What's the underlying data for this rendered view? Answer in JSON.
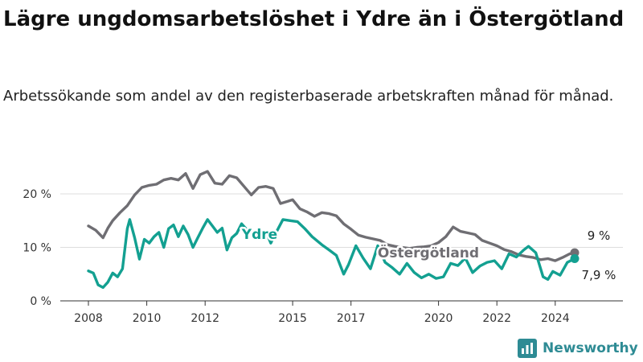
{
  "title": "Lägre ungdomsarbetslöshet i Ydre än i Östergötland",
  "subtitle": "Arbetssökande som andel av den registerbaserade arbetskraften månad för månad.",
  "brand": {
    "name": "Newsworthy"
  },
  "colors": {
    "ostergotland": "#6f6e73",
    "ydre": "#13a091",
    "grid": "#dddddd",
    "brand": "#2e8b94"
  },
  "chart_data": {
    "type": "line",
    "title": "Lägre ungdomsarbetslöshet i Ydre än i Östergötland",
    "subtitle": "Arbetssökande som andel av den registerbaserade arbetskraften månad för månad.",
    "x_range": [
      "2008-01",
      "2024-09"
    ],
    "ylim": [
      0,
      25
    ],
    "y_ticks": [
      {
        "value": 0,
        "label": "0 %"
      },
      {
        "value": 10,
        "label": "10 %"
      },
      {
        "value": 20,
        "label": "20 %"
      }
    ],
    "x_ticks": [
      {
        "value": 2008,
        "label": "2008"
      },
      {
        "value": 2010,
        "label": "2010"
      },
      {
        "value": 2012,
        "label": "2012"
      },
      {
        "value": 2015,
        "label": "2015"
      },
      {
        "value": 2017,
        "label": "2017"
      },
      {
        "value": 2020,
        "label": "2020"
      },
      {
        "value": 2022,
        "label": "2022"
      },
      {
        "value": 2024,
        "label": "2024"
      }
    ],
    "grid": "horizontal",
    "series": [
      {
        "name": "Östergötland",
        "color": "#6f6e73",
        "end_label": "9 %",
        "points": [
          [
            "2008-01",
            14.0
          ],
          [
            "2008-04",
            13.2
          ],
          [
            "2008-07",
            11.8
          ],
          [
            "2008-09",
            13.6
          ],
          [
            "2008-11",
            15.0
          ],
          [
            "2009-02",
            16.5
          ],
          [
            "2009-05",
            17.8
          ],
          [
            "2009-08",
            19.8
          ],
          [
            "2009-11",
            21.2
          ],
          [
            "2010-02",
            21.6
          ],
          [
            "2010-05",
            21.8
          ],
          [
            "2010-08",
            22.6
          ],
          [
            "2010-11",
            22.9
          ],
          [
            "2011-02",
            22.6
          ],
          [
            "2011-05",
            23.8
          ],
          [
            "2011-08",
            21.0
          ],
          [
            "2011-11",
            23.6
          ],
          [
            "2012-02",
            24.2
          ],
          [
            "2012-05",
            22.0
          ],
          [
            "2012-08",
            21.8
          ],
          [
            "2012-11",
            23.4
          ],
          [
            "2013-02",
            23.0
          ],
          [
            "2013-05",
            21.4
          ],
          [
            "2013-08",
            19.8
          ],
          [
            "2013-11",
            21.2
          ],
          [
            "2014-02",
            21.4
          ],
          [
            "2014-05",
            21.0
          ],
          [
            "2014-08",
            18.2
          ],
          [
            "2014-11",
            18.6
          ],
          [
            "2015-01",
            18.9
          ],
          [
            "2015-04",
            17.2
          ],
          [
            "2015-07",
            16.6
          ],
          [
            "2015-10",
            15.8
          ],
          [
            "2016-01",
            16.5
          ],
          [
            "2016-04",
            16.3
          ],
          [
            "2016-07",
            15.9
          ],
          [
            "2016-10",
            14.4
          ],
          [
            "2017-01",
            13.4
          ],
          [
            "2017-04",
            12.3
          ],
          [
            "2017-07",
            11.9
          ],
          [
            "2017-10",
            11.6
          ],
          [
            "2018-01",
            11.3
          ],
          [
            "2018-04",
            10.5
          ],
          [
            "2018-07",
            10.2
          ],
          [
            "2018-10",
            10.0
          ],
          [
            "2019-01",
            9.8
          ],
          [
            "2019-04",
            10.0
          ],
          [
            "2019-07",
            10.1
          ],
          [
            "2019-10",
            10.3
          ],
          [
            "2020-01",
            10.9
          ],
          [
            "2020-04",
            12.0
          ],
          [
            "2020-07",
            13.8
          ],
          [
            "2020-10",
            13.0
          ],
          [
            "2021-01",
            12.7
          ],
          [
            "2021-04",
            12.4
          ],
          [
            "2021-07",
            11.3
          ],
          [
            "2021-10",
            10.8
          ],
          [
            "2022-01",
            10.3
          ],
          [
            "2022-04",
            9.6
          ],
          [
            "2022-07",
            9.2
          ],
          [
            "2022-10",
            8.6
          ],
          [
            "2023-01",
            8.3
          ],
          [
            "2023-04",
            8.1
          ],
          [
            "2023-07",
            7.7
          ],
          [
            "2023-10",
            7.9
          ],
          [
            "2024-01",
            7.5
          ],
          [
            "2024-04",
            8.1
          ],
          [
            "2024-07",
            8.8
          ],
          [
            "2024-09",
            9.0
          ]
        ]
      },
      {
        "name": "Ydre",
        "color": "#13a091",
        "end_label": "7,9 %",
        "points": [
          [
            "2008-01",
            5.6
          ],
          [
            "2008-03",
            5.2
          ],
          [
            "2008-05",
            3.0
          ],
          [
            "2008-07",
            2.5
          ],
          [
            "2008-09",
            3.5
          ],
          [
            "2008-11",
            5.2
          ],
          [
            "2009-01",
            4.5
          ],
          [
            "2009-03",
            6.0
          ],
          [
            "2009-05",
            13.5
          ],
          [
            "2009-06",
            15.2
          ],
          [
            "2009-08",
            11.8
          ],
          [
            "2009-10",
            7.8
          ],
          [
            "2009-12",
            11.5
          ],
          [
            "2010-02",
            10.8
          ],
          [
            "2010-04",
            12.0
          ],
          [
            "2010-06",
            12.8
          ],
          [
            "2010-08",
            10.0
          ],
          [
            "2010-10",
            13.5
          ],
          [
            "2010-12",
            14.2
          ],
          [
            "2011-02",
            12.0
          ],
          [
            "2011-04",
            14.0
          ],
          [
            "2011-06",
            12.4
          ],
          [
            "2011-08",
            10.0
          ],
          [
            "2011-10",
            11.8
          ],
          [
            "2011-12",
            13.6
          ],
          [
            "2012-02",
            15.2
          ],
          [
            "2012-04",
            14.0
          ],
          [
            "2012-06",
            12.8
          ],
          [
            "2012-08",
            13.6
          ],
          [
            "2012-10",
            9.5
          ],
          [
            "2012-12",
            11.8
          ],
          [
            "2013-02",
            12.6
          ],
          [
            "2013-04",
            14.4
          ],
          [
            "2013-06",
            13.4
          ],
          [
            "2013-08",
            13.0
          ],
          [
            "2013-10",
            12.4
          ],
          [
            "2013-12",
            12.0
          ],
          [
            "2014-02",
            13.0
          ],
          [
            "2014-04",
            10.8
          ],
          [
            "2014-06",
            12.6
          ],
          [
            "2014-09",
            15.2
          ],
          [
            "2014-12",
            15.0
          ],
          [
            "2015-03",
            14.8
          ],
          [
            "2015-06",
            13.5
          ],
          [
            "2015-09",
            12.0
          ],
          [
            "2016-01",
            10.5
          ],
          [
            "2016-04",
            9.5
          ],
          [
            "2016-07",
            8.5
          ],
          [
            "2016-10",
            5.0
          ],
          [
            "2016-12",
            6.8
          ],
          [
            "2017-03",
            10.3
          ],
          [
            "2017-06",
            8.0
          ],
          [
            "2017-09",
            6.0
          ],
          [
            "2017-12",
            10.3
          ],
          [
            "2018-03",
            7.2
          ],
          [
            "2018-06",
            6.2
          ],
          [
            "2018-09",
            5.0
          ],
          [
            "2018-12",
            7.0
          ],
          [
            "2019-03",
            5.3
          ],
          [
            "2019-06",
            4.3
          ],
          [
            "2019-09",
            5.0
          ],
          [
            "2019-12",
            4.2
          ],
          [
            "2020-03",
            4.5
          ],
          [
            "2020-06",
            7.0
          ],
          [
            "2020-09",
            6.6
          ],
          [
            "2020-12",
            8.0
          ],
          [
            "2021-03",
            5.3
          ],
          [
            "2021-06",
            6.5
          ],
          [
            "2021-09",
            7.2
          ],
          [
            "2021-12",
            7.5
          ],
          [
            "2022-03",
            6.0
          ],
          [
            "2022-06",
            8.8
          ],
          [
            "2022-09",
            8.2
          ],
          [
            "2022-12",
            9.5
          ],
          [
            "2023-02",
            10.2
          ],
          [
            "2023-05",
            9.0
          ],
          [
            "2023-08",
            4.5
          ],
          [
            "2023-10",
            4.0
          ],
          [
            "2023-12",
            5.5
          ],
          [
            "2024-03",
            4.8
          ],
          [
            "2024-06",
            7.2
          ],
          [
            "2024-09",
            7.9
          ]
        ]
      }
    ],
    "annotations": [
      {
        "text": "Ydre",
        "series": "Ydre"
      },
      {
        "text": "Östergötland",
        "series": "Östergötland"
      }
    ]
  }
}
